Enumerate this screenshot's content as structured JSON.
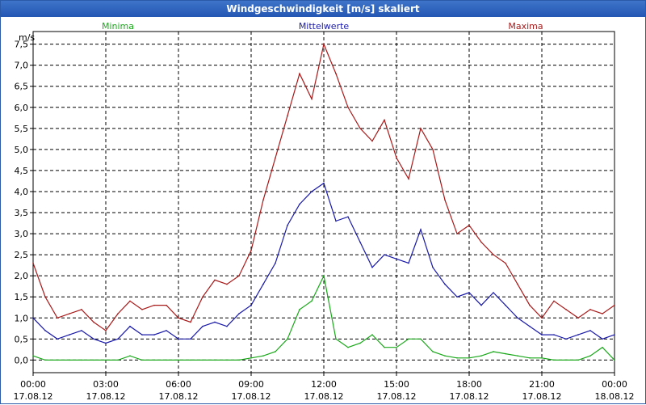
{
  "window": {
    "title": "Windgeschwindigkeit [m/s] skaliert"
  },
  "chart_data": {
    "type": "line",
    "title": "Windgeschwindigkeit [m/s] skaliert",
    "ylabel": "m/s",
    "ylim": [
      -0.3,
      7.8
    ],
    "y_ticks": [
      0,
      0.5,
      1,
      1.5,
      2,
      2.5,
      3,
      3.5,
      4,
      4.5,
      5,
      5.5,
      6,
      6.5,
      7,
      7.5
    ],
    "y_tick_labels": [
      "0,0",
      "0,5",
      "1,0",
      "1,5",
      "2,0",
      "2,5",
      "3,0",
      "3,5",
      "4,0",
      "4,5",
      "5,0",
      "5,5",
      "6,0",
      "6,5",
      "7,0",
      "7,5"
    ],
    "x_range_hours": [
      0,
      24
    ],
    "x_ticks": [
      {
        "h": 0,
        "time": "00:00",
        "date": "17.08.12"
      },
      {
        "h": 3,
        "time": "03:00",
        "date": "17.08.12"
      },
      {
        "h": 6,
        "time": "06:00",
        "date": "17.08.12"
      },
      {
        "h": 9,
        "time": "09:00",
        "date": "17.08.12"
      },
      {
        "h": 12,
        "time": "12:00",
        "date": "17.08.12"
      },
      {
        "h": 15,
        "time": "15:00",
        "date": "17.08.12"
      },
      {
        "h": 18,
        "time": "18:00",
        "date": "17.08.12"
      },
      {
        "h": 21,
        "time": "21:00",
        "date": "17.08.12"
      },
      {
        "h": 24,
        "time": "00:00",
        "date": "18.08.12"
      }
    ],
    "x_hours": [
      0,
      0.5,
      1,
      1.5,
      2,
      2.5,
      3,
      3.5,
      4,
      4.5,
      5,
      5.5,
      6,
      6.5,
      7,
      7.5,
      8,
      8.5,
      9,
      9.5,
      10,
      10.5,
      11,
      11.5,
      12,
      12.5,
      13,
      13.5,
      14,
      14.5,
      15,
      15.5,
      16,
      16.5,
      17,
      17.5,
      18,
      18.5,
      19,
      19.5,
      20,
      20.5,
      21,
      21.5,
      22,
      22.5,
      23,
      23.5,
      24
    ],
    "series": [
      {
        "name": "Minima",
        "color": "#1aa81a",
        "values": [
          0.1,
          0,
          0,
          0,
          0,
          0,
          0,
          0,
          0.1,
          0,
          0,
          0,
          0,
          0,
          0,
          0,
          0,
          0,
          0.05,
          0.1,
          0.2,
          0.5,
          1.2,
          1.4,
          2.0,
          0.5,
          0.3,
          0.4,
          0.6,
          0.3,
          0.3,
          0.5,
          0.5,
          0.2,
          0.1,
          0.05,
          0.05,
          0.1,
          0.2,
          0.15,
          0.1,
          0.05,
          0.05,
          0,
          0,
          0,
          0.1,
          0.3,
          0
        ]
      },
      {
        "name": "Mittelwerte",
        "color": "#1a1aa8",
        "values": [
          1.0,
          0.7,
          0.5,
          0.6,
          0.7,
          0.5,
          0.4,
          0.5,
          0.8,
          0.6,
          0.6,
          0.7,
          0.5,
          0.5,
          0.8,
          0.9,
          0.8,
          1.1,
          1.3,
          1.8,
          2.3,
          3.2,
          3.7,
          4.0,
          4.2,
          3.3,
          3.4,
          2.8,
          2.2,
          2.5,
          2.4,
          2.3,
          3.1,
          2.2,
          1.8,
          1.5,
          1.6,
          1.3,
          1.6,
          1.3,
          1.0,
          0.8,
          0.6,
          0.6,
          0.5,
          0.6,
          0.7,
          0.5,
          0.6
        ]
      },
      {
        "name": "Maxima",
        "color": "#a81a1a",
        "values": [
          2.3,
          1.5,
          1.0,
          1.1,
          1.2,
          0.9,
          0.7,
          1.1,
          1.4,
          1.2,
          1.3,
          1.3,
          1.0,
          0.9,
          1.5,
          1.9,
          1.8,
          2.0,
          2.6,
          3.8,
          4.8,
          5.8,
          6.8,
          6.2,
          7.5,
          6.8,
          6.0,
          5.5,
          5.2,
          5.7,
          4.8,
          4.3,
          5.5,
          5.0,
          3.8,
          3.0,
          3.2,
          2.8,
          2.5,
          2.3,
          1.8,
          1.3,
          1.0,
          1.4,
          1.2,
          1.0,
          1.2,
          1.1,
          1.3
        ]
      }
    ],
    "legend": [
      {
        "label": "Minima",
        "color": "#1aa81a"
      },
      {
        "label": "Mittelwerte",
        "color": "#1a1aa8"
      },
      {
        "label": "Maxima",
        "color": "#a81a1a"
      }
    ],
    "grid": true
  }
}
